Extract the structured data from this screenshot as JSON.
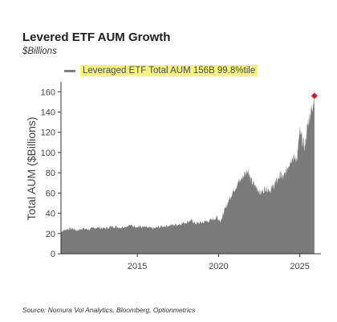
{
  "header": {
    "title": "Levered ETF AUM Growth",
    "subtitle": "$Billions"
  },
  "legend": {
    "label": "Leveraged ETF Total AUM 156B 99.8%tile"
  },
  "source": "Source: Nomura Vol Analytics, Bloomberg, Optionmetrics",
  "colors": {
    "area": "#7a7a7a",
    "highlight": "#f5f57a",
    "marker": "#c0202a",
    "axis": "#333333"
  },
  "chart_data": {
    "type": "area",
    "ylabel": "Total AUM ($Billions)",
    "xlabel": "",
    "xlim": [
      2010.3,
      2026.3
    ],
    "ylim": [
      0,
      165
    ],
    "yticks": [
      0,
      20,
      40,
      60,
      80,
      100,
      120,
      140,
      160
    ],
    "xticks": [
      2015,
      2020,
      2025
    ],
    "grid": false,
    "legend_position": "top-left",
    "series": [
      {
        "name": "Leveraged ETF Total AUM",
        "x": [
          2010.3,
          2010.6,
          2011.0,
          2011.3,
          2011.6,
          2012.0,
          2012.5,
          2013.0,
          2013.5,
          2014.0,
          2014.5,
          2015.0,
          2015.5,
          2016.0,
          2016.5,
          2017.0,
          2017.5,
          2018.0,
          2018.3,
          2018.6,
          2019.0,
          2019.5,
          2019.9,
          2020.1,
          2020.3,
          2020.6,
          2020.9,
          2021.2,
          2021.5,
          2021.8,
          2022.0,
          2022.3,
          2022.6,
          2022.9,
          2023.2,
          2023.5,
          2023.8,
          2024.0,
          2024.3,
          2024.5,
          2024.8,
          2025.0,
          2025.3,
          2025.5,
          2025.7,
          2025.9
        ],
        "values": [
          22,
          24,
          25,
          23,
          25,
          24,
          26,
          25,
          27,
          26,
          28,
          27,
          26,
          25,
          27,
          28,
          29,
          31,
          33,
          30,
          31,
          33,
          36,
          32,
          40,
          52,
          62,
          70,
          76,
          84,
          72,
          66,
          60,
          65,
          63,
          70,
          78,
          75,
          88,
          95,
          93,
          120,
          105,
          130,
          142,
          156
        ]
      }
    ],
    "marker": {
      "x": 2025.9,
      "y": 156
    }
  }
}
